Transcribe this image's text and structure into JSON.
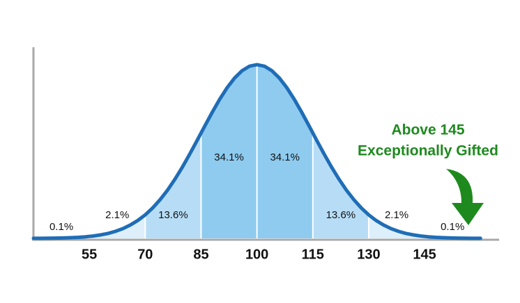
{
  "chart_data": {
    "type": "normal",
    "xlim": [
      40,
      165
    ],
    "xticks": [
      55,
      70,
      85,
      100,
      115,
      130,
      145
    ],
    "regions": [
      40,
      55,
      70,
      85,
      100,
      115,
      130,
      145,
      160
    ],
    "values": [
      0.1,
      2.1,
      13.6,
      34.1,
      34.1,
      13.6,
      2.1,
      0.1
    ],
    "value_labels": [
      "0.1%",
      "2.1%",
      "13.6%",
      "34.1%",
      "34.1%",
      "13.6%",
      "2.1%",
      "0.1%"
    ],
    "colors": [
      "#ddeffb",
      "#ddeffb",
      "#b7ddf6",
      "#8ecbef",
      "#8ecbef",
      "#b7ddf6",
      "#ddeffb",
      "#ddeffb"
    ],
    "line_color": "#1f6db7",
    "annotation": [
      "Above 145",
      "Exceptionally Gifted"
    ],
    "annotation_color": "#1e8a1e"
  }
}
